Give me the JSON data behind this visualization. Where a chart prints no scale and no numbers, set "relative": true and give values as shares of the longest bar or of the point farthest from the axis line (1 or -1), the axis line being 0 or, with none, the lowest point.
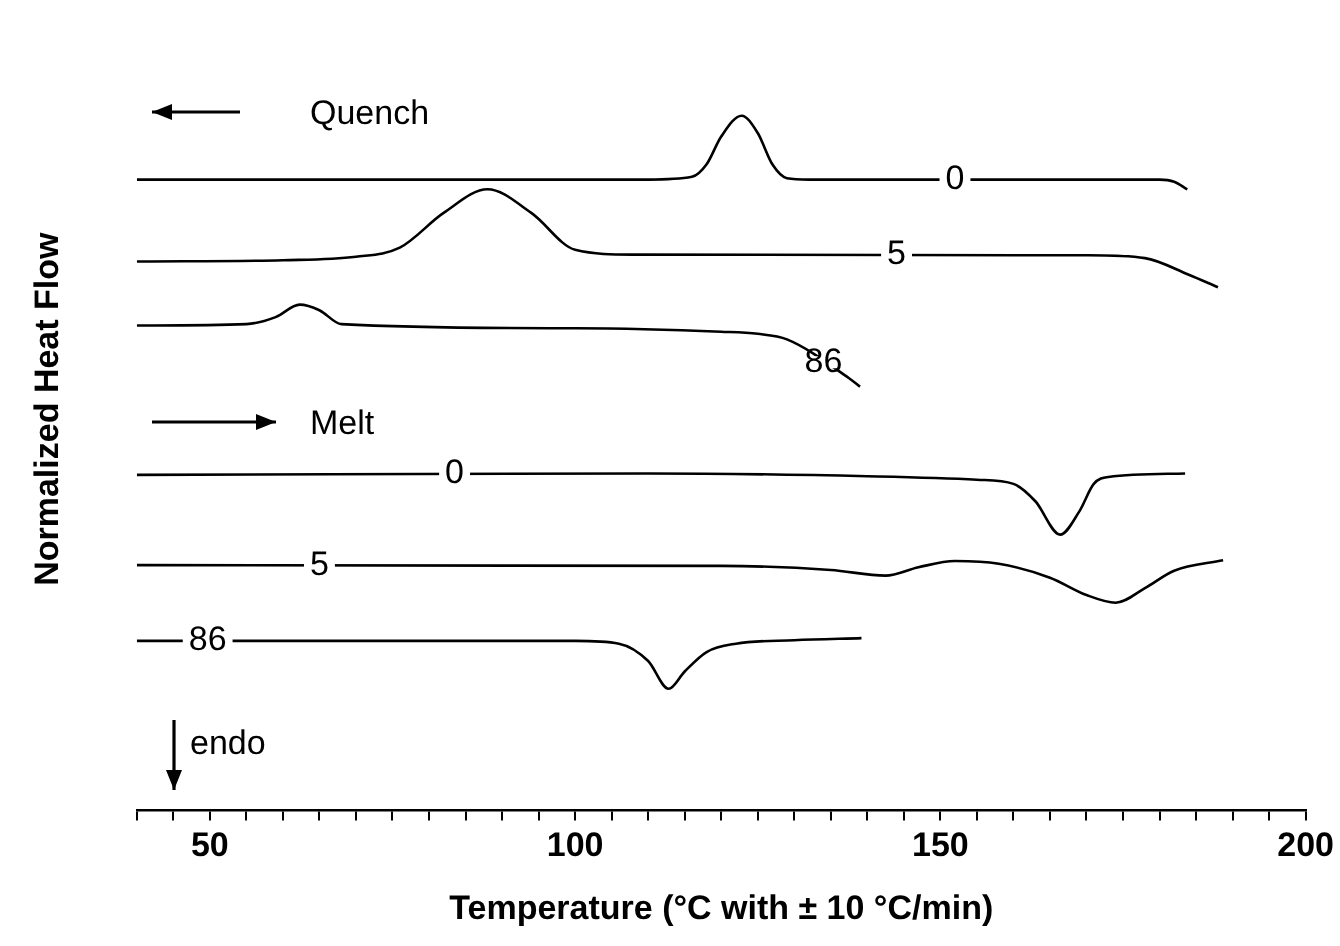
{
  "chart_data": {
    "type": "line",
    "relative": true,
    "xlabel": "Temperature (°C with ± 10 °C/min)",
    "ylabel": "Normalized Heat Flow",
    "xlim": [
      40,
      200
    ],
    "xticks": [
      {
        "value": 40,
        "label": null
      },
      {
        "value": 45,
        "label": null
      },
      50,
      {
        "value": 55,
        "label": null
      },
      {
        "value": 60,
        "label": null
      },
      {
        "value": 65,
        "label": null
      },
      {
        "value": 70,
        "label": null
      },
      {
        "value": 75,
        "label": null
      },
      {
        "value": 80,
        "label": null
      },
      {
        "value": 85,
        "label": null
      },
      {
        "value": 90,
        "label": null
      },
      {
        "value": 95,
        "label": null
      },
      100,
      {
        "value": 105,
        "label": null
      },
      {
        "value": 110,
        "label": null
      },
      {
        "value": 115,
        "label": null
      },
      {
        "value": 120,
        "label": null
      },
      {
        "value": 125,
        "label": null
      },
      {
        "value": 130,
        "label": null
      },
      {
        "value": 135,
        "label": null
      },
      {
        "value": 140,
        "label": null
      },
      {
        "value": 145,
        "label": null
      },
      150,
      {
        "value": 155,
        "label": null
      },
      {
        "value": 160,
        "label": null
      },
      {
        "value": 165,
        "label": null
      },
      {
        "value": 170,
        "label": null
      },
      {
        "value": 175,
        "label": null
      },
      {
        "value": 180,
        "label": null
      },
      {
        "value": 185,
        "label": null
      },
      {
        "value": 190,
        "label": null
      },
      {
        "value": 195,
        "label": null
      },
      200
    ],
    "grid": false,
    "legend": false,
    "marker": "none",
    "line_style": "solid",
    "annotations": [
      "Quench",
      "Melt",
      "endo"
    ],
    "series": [
      {
        "name": "0",
        "color": "#000000",
        "x": [
          40,
          110,
          116,
          118,
          120,
          122.8,
          125,
          127,
          129,
          132,
          180,
          182,
          183.8
        ],
        "values": [
          0.908,
          0.908,
          0.912,
          0.93,
          0.97,
          1.0,
          0.975,
          0.93,
          0.91,
          0.908,
          0.908,
          0.905,
          0.894
        ]
      },
      {
        "name": "5",
        "color": "#000000",
        "x": [
          40,
          60,
          70,
          76,
          82,
          88,
          94,
          100,
          108,
          170,
          178,
          184,
          188
        ],
        "values": [
          0.79,
          0.792,
          0.797,
          0.81,
          0.86,
          0.894,
          0.86,
          0.807,
          0.8,
          0.799,
          0.795,
          0.771,
          0.753
        ]
      },
      {
        "name": "86",
        "color": "#000000",
        "x": [
          40,
          55,
          59,
          62.3,
          65,
          68,
          100,
          120,
          125,
          129,
          137.5,
          139
        ],
        "values": [
          0.698,
          0.7,
          0.71,
          0.728,
          0.72,
          0.7,
          0.694,
          0.689,
          0.686,
          0.678,
          0.622,
          0.61
        ]
      },
      {
        "name": "0",
        "color": "#000000",
        "x": [
          40,
          110,
          140,
          155,
          160,
          163,
          166.4,
          169,
          171,
          173,
          183.5
        ],
        "values": [
          0.483,
          0.485,
          0.481,
          0.476,
          0.47,
          0.445,
          0.397,
          0.43,
          0.47,
          0.48,
          0.485
        ]
      },
      {
        "name": "5",
        "color": "#000000",
        "x": [
          40,
          120,
          135,
          142.5,
          147,
          152,
          158,
          165,
          170,
          174,
          178,
          182,
          188.7
        ],
        "values": [
          0.353,
          0.352,
          0.346,
          0.338,
          0.35,
          0.359,
          0.355,
          0.335,
          0.31,
          0.299,
          0.32,
          0.345,
          0.36
        ]
      },
      {
        "name": "86",
        "color": "#000000",
        "x": [
          40,
          100,
          106,
          110,
          112.8,
          115,
          118,
          122,
          130,
          139.2
        ],
        "values": [
          0.244,
          0.244,
          0.24,
          0.215,
          0.175,
          0.2,
          0.228,
          0.24,
          0.245,
          0.248
        ]
      }
    ]
  }
}
